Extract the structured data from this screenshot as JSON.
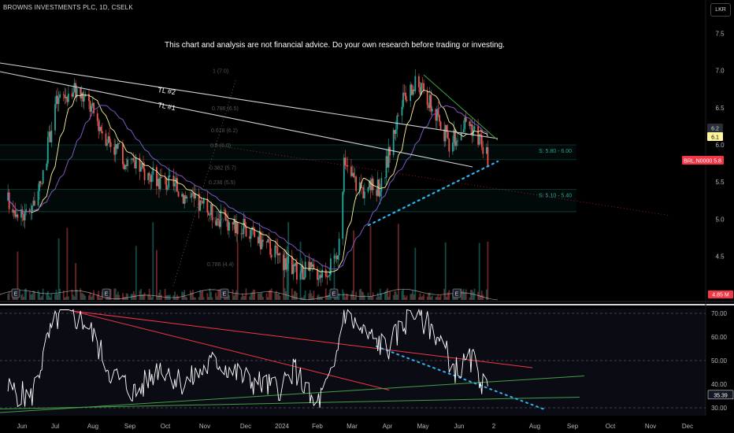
{
  "header": {
    "symbol_line": "BROWNS INVESTMENTS PLC, 1D, CSELK",
    "disclaimer": "This chart and analysis are not financial advice. Do your own research before trading or investing.",
    "currency": "LKR"
  },
  "chart_data": [
    {
      "type": "candlestick",
      "title": "BROWNS INVESTMENTS PLC, 1D, CSELK",
      "y_axis_ticks": [
        7.5,
        7.0,
        6.5,
        6.0,
        5.5,
        5.0,
        4.5
      ],
      "ylim": [
        4.05,
        7.95
      ],
      "price_path": [
        {
          "x": "2023-06-01",
          "y": 5.25
        },
        {
          "x": "2023-06-15",
          "y": 5.05
        },
        {
          "x": "2023-06-28",
          "y": 5.4
        },
        {
          "x": "2023-07-10",
          "y": 6.55
        },
        {
          "x": "2023-07-25",
          "y": 6.75
        },
        {
          "x": "2023-08-05",
          "y": 6.6
        },
        {
          "x": "2023-08-20",
          "y": 6.15
        },
        {
          "x": "2023-09-05",
          "y": 5.8
        },
        {
          "x": "2023-09-25",
          "y": 5.6
        },
        {
          "x": "2023-10-15",
          "y": 5.45
        },
        {
          "x": "2023-11-05",
          "y": 5.2
        },
        {
          "x": "2023-11-25",
          "y": 5.0
        },
        {
          "x": "2023-12-15",
          "y": 4.85
        },
        {
          "x": "2024-01-05",
          "y": 4.6
        },
        {
          "x": "2024-01-25",
          "y": 4.3
        },
        {
          "x": "2024-02-15",
          "y": 4.3
        },
        {
          "x": "2024-02-28",
          "y": 4.4
        },
        {
          "x": "2024-03-05",
          "y": 5.7
        },
        {
          "x": "2024-03-20",
          "y": 5.4
        },
        {
          "x": "2024-04-05",
          "y": 5.45
        },
        {
          "x": "2024-04-20",
          "y": 6.5
        },
        {
          "x": "2024-05-05",
          "y": 6.85
        },
        {
          "x": "2024-05-20",
          "y": 6.4
        },
        {
          "x": "2024-06-01",
          "y": 6.0
        },
        {
          "x": "2024-06-15",
          "y": 6.35
        },
        {
          "x": "2024-06-28",
          "y": 6.0
        },
        {
          "x": "2024-07-02",
          "y": 5.8
        }
      ],
      "levels": [
        {
          "label": "S: 5.80 - 6.00",
          "low": 5.8,
          "high": 6.0
        },
        {
          "label": "S: 5.10 - 5.40",
          "low": 5.1,
          "high": 5.4
        }
      ],
      "trendlines": [
        {
          "label": "TL #2"
        },
        {
          "label": "TL #1"
        }
      ],
      "fib_labels": [
        "1 (7.0)",
        "0.786 (6.5)",
        "0.618 (6.2)",
        "0.5 (6.0)",
        "0.382 (5.7)",
        "0.236 (5.5)",
        "0 (5.0)",
        "0.786 (4.4)"
      ],
      "price_badges": [
        {
          "label": "",
          "value": "6.2",
          "color": "#2a2e39",
          "text_color": "#d1d4dc"
        },
        {
          "label": "",
          "value": "6.1",
          "color": "#fff59d",
          "text_color": "#000"
        },
        {
          "label": "BRL.N0000",
          "value": "5.8",
          "color": "#f23645",
          "text_color": "#ffffff"
        }
      ],
      "volume_label": "4.85 M",
      "event_markers": [
        "E",
        "E",
        "E",
        "E",
        "E"
      ]
    },
    {
      "type": "line",
      "name": "RSI",
      "y_axis_ticks": [
        70.0,
        60.0,
        50.0,
        40.0,
        30.0
      ],
      "ylim": [
        27,
        72
      ],
      "current_value": "35.39",
      "rsi_path": [
        {
          "x": "2023-06-01",
          "y": 38
        },
        {
          "x": "2023-06-20",
          "y": 34
        },
        {
          "x": "2023-07-05",
          "y": 60
        },
        {
          "x": "2023-07-15",
          "y": 71
        },
        {
          "x": "2023-08-05",
          "y": 66
        },
        {
          "x": "2023-08-25",
          "y": 45
        },
        {
          "x": "2023-09-15",
          "y": 36
        },
        {
          "x": "2023-10-05",
          "y": 48
        },
        {
          "x": "2023-10-25",
          "y": 40
        },
        {
          "x": "2023-11-20",
          "y": 50
        },
        {
          "x": "2023-12-15",
          "y": 42
        },
        {
          "x": "2024-01-10",
          "y": 38
        },
        {
          "x": "2024-01-25",
          "y": 46
        },
        {
          "x": "2024-02-10",
          "y": 30
        },
        {
          "x": "2024-02-25",
          "y": 44
        },
        {
          "x": "2024-03-05",
          "y": 71
        },
        {
          "x": "2024-03-20",
          "y": 62
        },
        {
          "x": "2024-04-10",
          "y": 55
        },
        {
          "x": "2024-05-01",
          "y": 71
        },
        {
          "x": "2024-05-20",
          "y": 62
        },
        {
          "x": "2024-06-05",
          "y": 46
        },
        {
          "x": "2024-06-20",
          "y": 50
        },
        {
          "x": "2024-07-02",
          "y": 35.39
        }
      ],
      "x_axis_labels": [
        "Jun",
        "Jul",
        "Aug",
        "Sep",
        "Oct",
        "Nov",
        "Dec",
        "2024",
        "Feb",
        "Mar",
        "Apr",
        "May",
        "Jun",
        "2",
        "Aug",
        "Sep",
        "Oct",
        "Nov",
        "Dec"
      ]
    }
  ],
  "colors": {
    "up": "#26a69a",
    "down": "#ef5350",
    "ma_fast": "#fff59d",
    "ma_slow": "#7e57c2",
    "trendline": "#d1d4dc",
    "support_zone": "#26a69a",
    "rsi": "#ffffff",
    "rsi_red_line": "#f23645",
    "rsi_green_line": "#43a047",
    "dotted_trend": "#29b6f6"
  }
}
